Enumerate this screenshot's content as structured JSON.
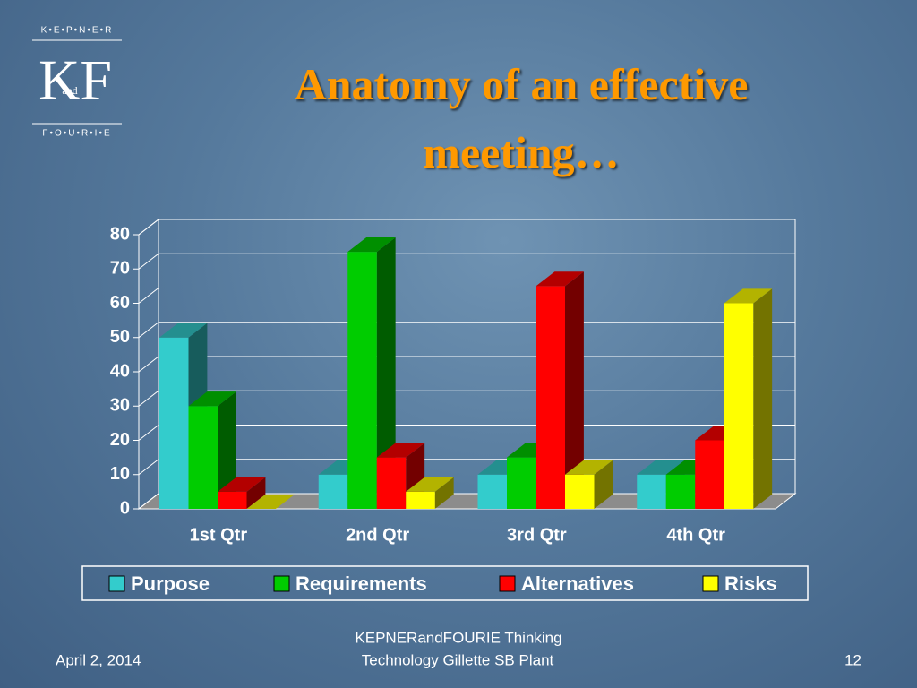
{
  "chart_data": {
    "type": "bar3d",
    "title": "Anatomy of an effective meeting…",
    "categories": [
      "1st Qtr",
      "2nd Qtr",
      "3rd Qtr",
      "4th Qtr"
    ],
    "series": [
      {
        "name": "Purpose",
        "color": "#33cccc",
        "values": [
          50,
          10,
          10,
          10
        ]
      },
      {
        "name": "Requirements",
        "color": "#00cc00",
        "values": [
          30,
          75,
          15,
          10
        ]
      },
      {
        "name": "Alternatives",
        "color": "#ff0000",
        "values": [
          5,
          15,
          65,
          20
        ]
      },
      {
        "name": "Risks",
        "color": "#ffff00",
        "values": [
          0,
          5,
          10,
          60
        ]
      }
    ],
    "ylim": [
      0,
      80
    ],
    "yticks": [
      0,
      10,
      20,
      30,
      40,
      50,
      60,
      70,
      80
    ],
    "grid": true,
    "legend": "bottom"
  },
  "slide": {
    "logo": {
      "top": "K•E•P•N•E•R",
      "mark": "KF",
      "and": "and",
      "bottom": "F•O•U•R•I•E"
    },
    "footer": {
      "date": "April 2, 2014",
      "organization": "KEPNERandFOURIE Thinking",
      "site": "Technology        Gillette SB Plant",
      "page": "12"
    }
  }
}
